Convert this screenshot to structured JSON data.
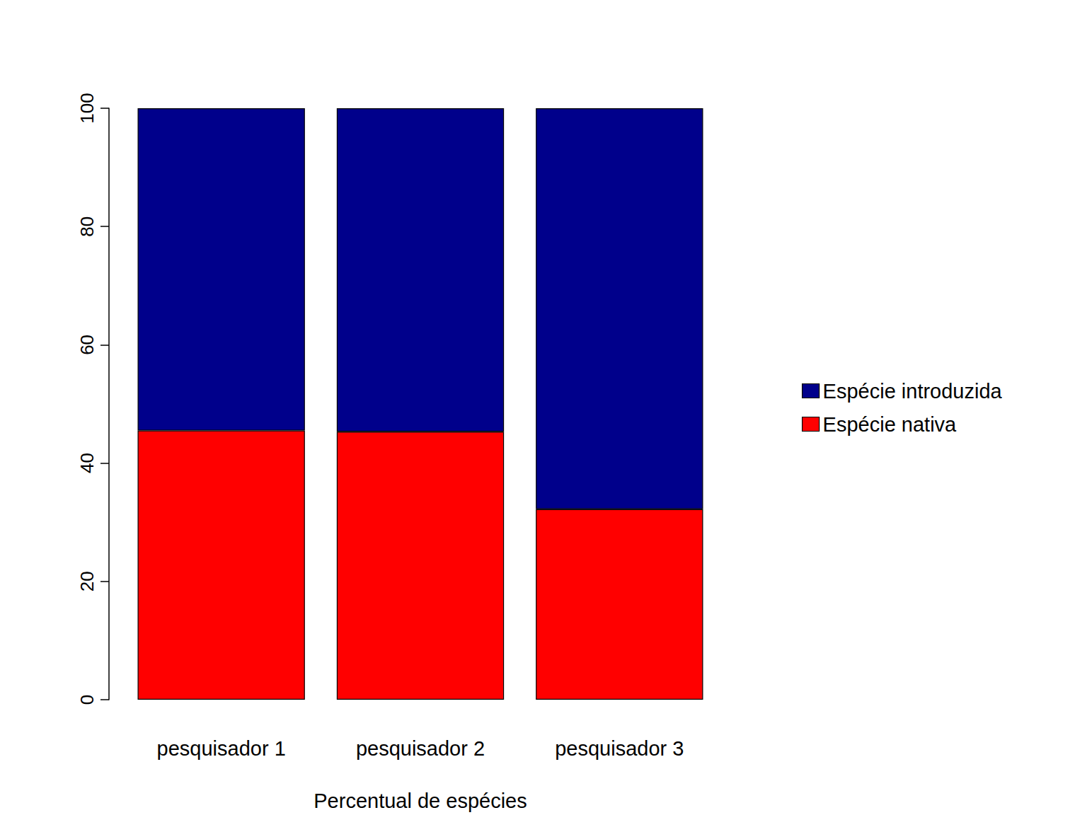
{
  "chart_data": {
    "type": "bar",
    "stacked": true,
    "xlabel": "Percentual de espécies",
    "categories": [
      "pesquisador 1",
      "pesquisador 2",
      "pesquisador 3"
    ],
    "series": [
      {
        "name": "Espécie nativa",
        "color": "#ff0000",
        "values": [
          45.5,
          45.3,
          32.2
        ]
      },
      {
        "name": "Espécie introduzida",
        "color": "#00008b",
        "values": [
          54.5,
          54.7,
          67.8
        ]
      }
    ],
    "ylim": [
      0,
      100
    ],
    "yticks": [
      0,
      20,
      40,
      60,
      80,
      100
    ],
    "legend": "right",
    "grid": false
  }
}
